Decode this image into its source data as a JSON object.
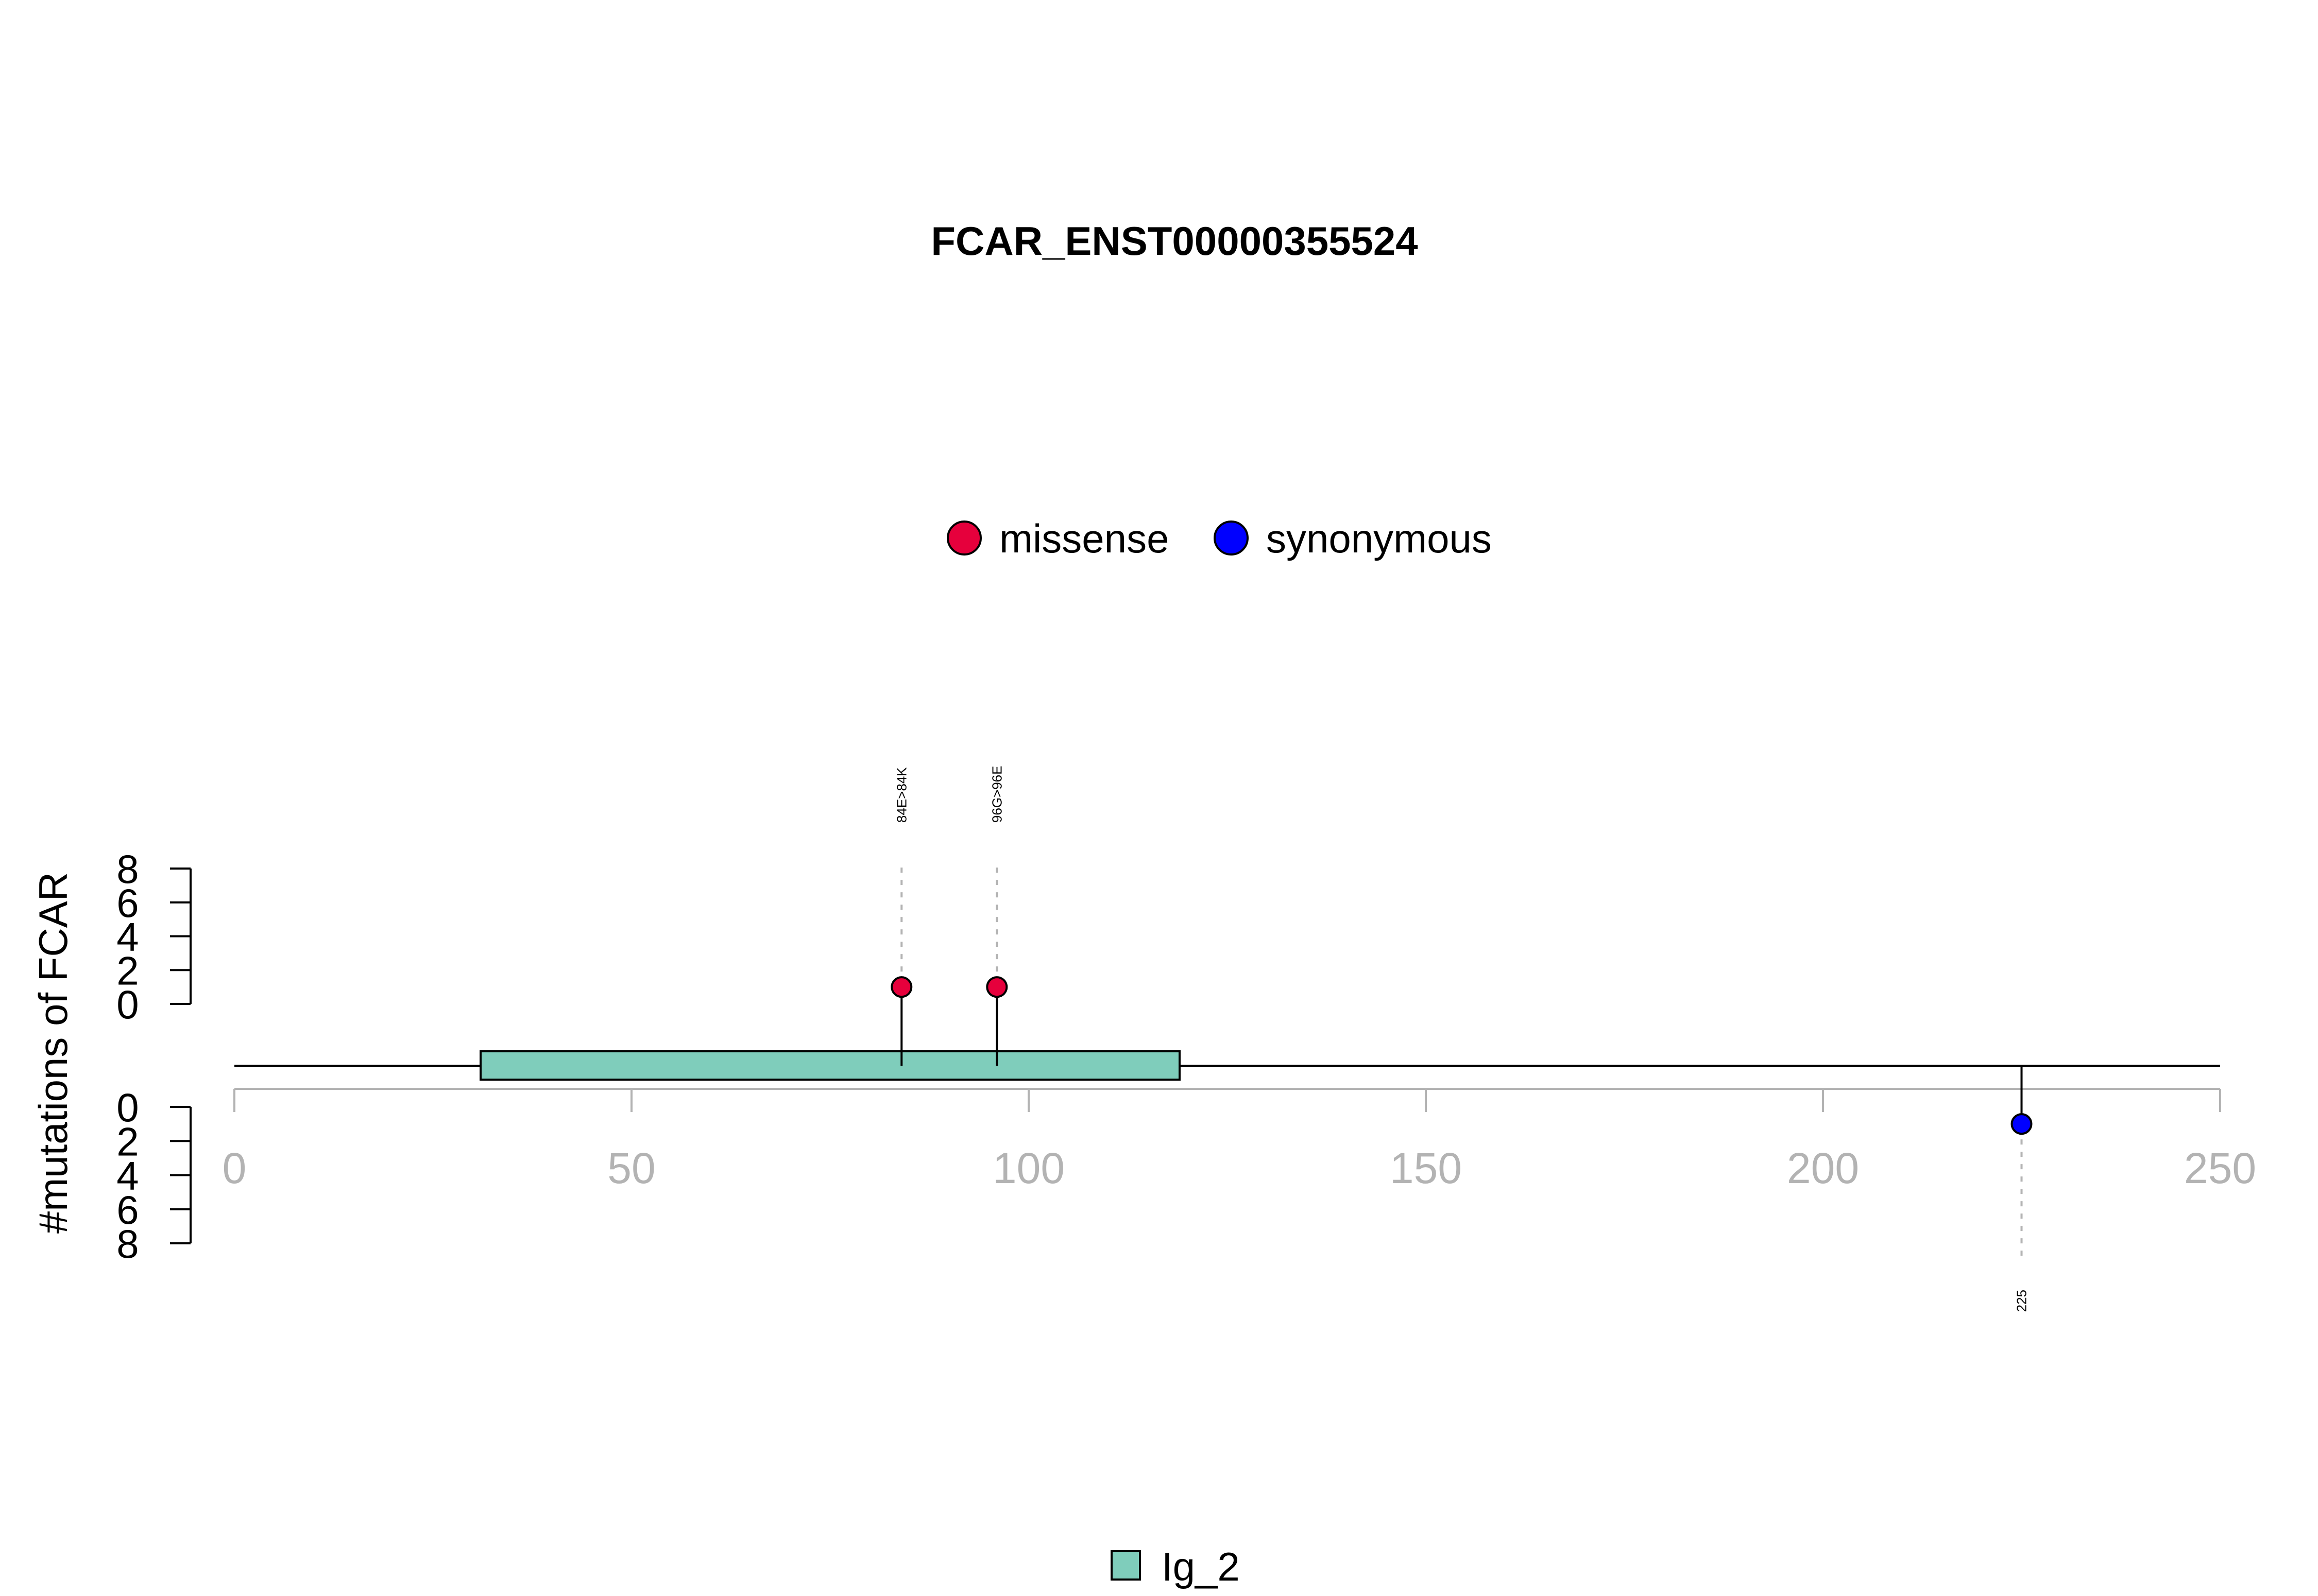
{
  "chart_data": {
    "type": "lollipop",
    "title": "FCAR_ENST00000355524",
    "ylabel": "#mutations of FCAR",
    "xlim": [
      0,
      250
    ],
    "x_ticks": [
      "0",
      "50",
      "100",
      "150",
      "200",
      "250"
    ],
    "ylim_top": [
      0,
      8
    ],
    "ylim_bottom": [
      0,
      8
    ],
    "y_ticks_top": [
      "0",
      "2",
      "4",
      "6",
      "8"
    ],
    "y_ticks_bottom": [
      "0",
      "2",
      "4",
      "6",
      "8"
    ],
    "protein_length": 250,
    "legend_mutations": [
      {
        "label": "missense",
        "color": "#e6003c"
      },
      {
        "label": "synonymous",
        "color": "#0000ff"
      }
    ],
    "legend_domains": [
      {
        "label": "Ig_2",
        "color": "#7fcdbb"
      }
    ],
    "domains": [
      {
        "name": "Ig_2",
        "start": 31,
        "end": 119,
        "color": "#7fcdbb"
      }
    ],
    "mutations": [
      {
        "position": 84,
        "label": "84E>84K",
        "count": 1,
        "type": "missense",
        "side": "top",
        "color": "#e6003c"
      },
      {
        "position": 96,
        "label": "96G>96E",
        "count": 1,
        "type": "missense",
        "side": "top",
        "color": "#e6003c"
      },
      {
        "position": 225,
        "label": "225",
        "count": 1,
        "type": "synonymous",
        "side": "bottom",
        "color": "#0000ff"
      }
    ]
  }
}
